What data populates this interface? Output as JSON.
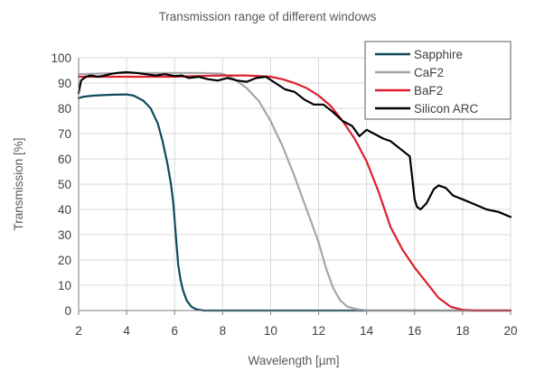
{
  "chart_data": {
    "type": "line",
    "title": "Transmission range of different windows",
    "xlabel": "Wavelength [µm]",
    "ylabel": "Transmission [%]",
    "xlim": [
      2,
      20
    ],
    "ylim": [
      0,
      100
    ],
    "xticks": [
      2,
      4,
      6,
      8,
      10,
      12,
      14,
      16,
      18,
      20
    ],
    "yticks": [
      0,
      10,
      20,
      30,
      40,
      50,
      60,
      70,
      80,
      90,
      100
    ],
    "grid": true,
    "legend_position": "top-right",
    "series": [
      {
        "name": "Sapphire",
        "color": "#0e4a5c",
        "x": [
          2,
          2.2,
          2.6,
          3.0,
          3.5,
          4.0,
          4.3,
          4.7,
          5.0,
          5.3,
          5.5,
          5.7,
          5.85,
          5.95,
          6.05,
          6.15,
          6.25,
          6.35,
          6.5,
          6.7,
          6.9,
          7.2,
          8,
          10,
          12,
          14,
          16,
          18,
          20
        ],
        "y": [
          84,
          84.6,
          85,
          85.2,
          85.4,
          85.5,
          85,
          83,
          80,
          74,
          67,
          58,
          50,
          42,
          30,
          18,
          12,
          8,
          4,
          1.5,
          0.5,
          0,
          0,
          0,
          0,
          0,
          0,
          0,
          0
        ]
      },
      {
        "name": "CaF2",
        "color": "#a6a6a6",
        "x": [
          2,
          3,
          4,
          5,
          6,
          7,
          8,
          8.5,
          9,
          9.5,
          10,
          10.5,
          11,
          11.5,
          12,
          12.3,
          12.6,
          12.9,
          13.2,
          13.6,
          14,
          15,
          16,
          18,
          20
        ],
        "y": [
          93.5,
          93.8,
          94,
          94,
          94,
          94,
          93.7,
          91.5,
          88,
          83,
          75,
          65,
          53,
          40,
          27,
          17,
          9,
          4,
          1.5,
          0.5,
          0,
          0,
          0,
          0,
          0
        ]
      },
      {
        "name": "BaF2",
        "color": "#dd1f2d",
        "x": [
          2,
          3,
          4,
          5,
          6,
          7,
          8,
          9,
          10,
          10.5,
          11,
          11.5,
          12,
          12.5,
          13,
          13.5,
          14,
          14.5,
          15,
          15.5,
          16,
          16.5,
          17,
          17.5,
          18,
          18.5,
          19,
          20
        ],
        "y": [
          92.5,
          92.5,
          92.5,
          92.5,
          92.5,
          92.8,
          93,
          93,
          92.5,
          91.5,
          90,
          88,
          85,
          81,
          75,
          68,
          59,
          47,
          33,
          24,
          17,
          11,
          5,
          1.5,
          0.3,
          0,
          0,
          0
        ]
      },
      {
        "name": "Silicon ARC",
        "color": "#000000",
        "x": [
          2,
          2.1,
          2.3,
          2.5,
          2.8,
          3.0,
          3.3,
          3.6,
          4.0,
          4.4,
          4.8,
          5.2,
          5.6,
          6.0,
          6.3,
          6.6,
          7.0,
          7.4,
          7.8,
          8.2,
          8.6,
          9.0,
          9.4,
          9.8,
          10.2,
          10.6,
          11.0,
          11.4,
          11.8,
          12.2,
          12.6,
          13.0,
          13.4,
          13.7,
          14.0,
          14.3,
          14.7,
          15.0,
          15.4,
          15.8,
          16.0,
          16.1,
          16.25,
          16.5,
          16.8,
          17.0,
          17.3,
          17.6,
          18.0,
          18.5,
          19.0,
          19.5,
          20.0
        ],
        "y": [
          86,
          91,
          92.5,
          93,
          92.5,
          92.8,
          93.5,
          94,
          94.3,
          94,
          93.5,
          93,
          93.5,
          92.8,
          93,
          92,
          92.5,
          91.5,
          91,
          92,
          91,
          90.5,
          92,
          92.5,
          90,
          87.5,
          86.5,
          83.5,
          81.5,
          81.5,
          78.5,
          75,
          73,
          69,
          71.5,
          70,
          68,
          67,
          64,
          61,
          44,
          41,
          40,
          42.5,
          48,
          49.5,
          48.5,
          45.5,
          44,
          42,
          40,
          39,
          37
        ]
      }
    ]
  }
}
